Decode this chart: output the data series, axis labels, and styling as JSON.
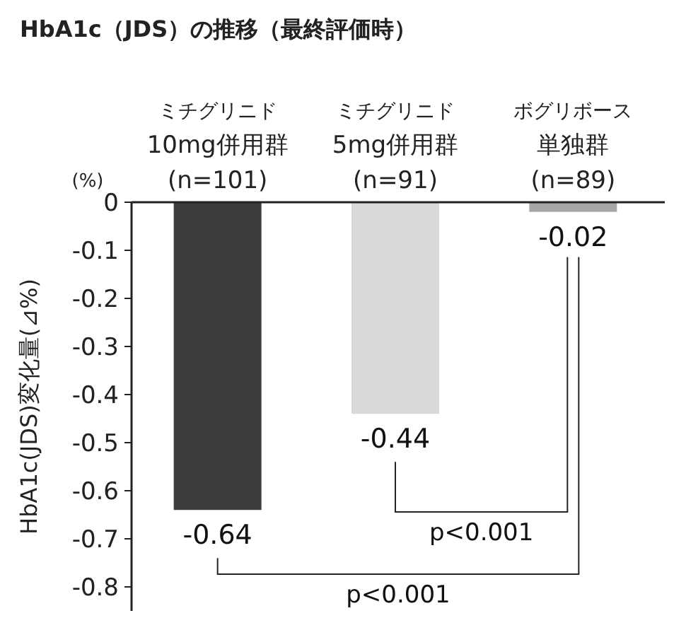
{
  "chart_data": {
    "type": "bar",
    "title": "HbA1c（JDS）の推移（最終評価時）",
    "ylabel": "HbA1c(JDS)変化量(⊿%)",
    "categories": [
      "ミチグリニド\n10mg併用群\n(n=101)",
      "ミチグリニド\n5mg併用群\n(n=91)",
      "ボグリボース単独群\n(n=89)"
    ],
    "values": [
      -0.64,
      -0.44,
      -0.02
    ],
    "colors": [
      "#3d3d3d",
      "#d9d9d9",
      "#a6a6a6"
    ],
    "ylim": [
      -0.85,
      0
    ],
    "yticks": [
      0,
      -0.1,
      -0.2,
      -0.3,
      -0.4,
      -0.5,
      -0.6,
      -0.7,
      -0.8
    ],
    "data_labels": true,
    "annotations": [
      "(%)",
      "p<0.001",
      "p<0.001"
    ]
  }
}
